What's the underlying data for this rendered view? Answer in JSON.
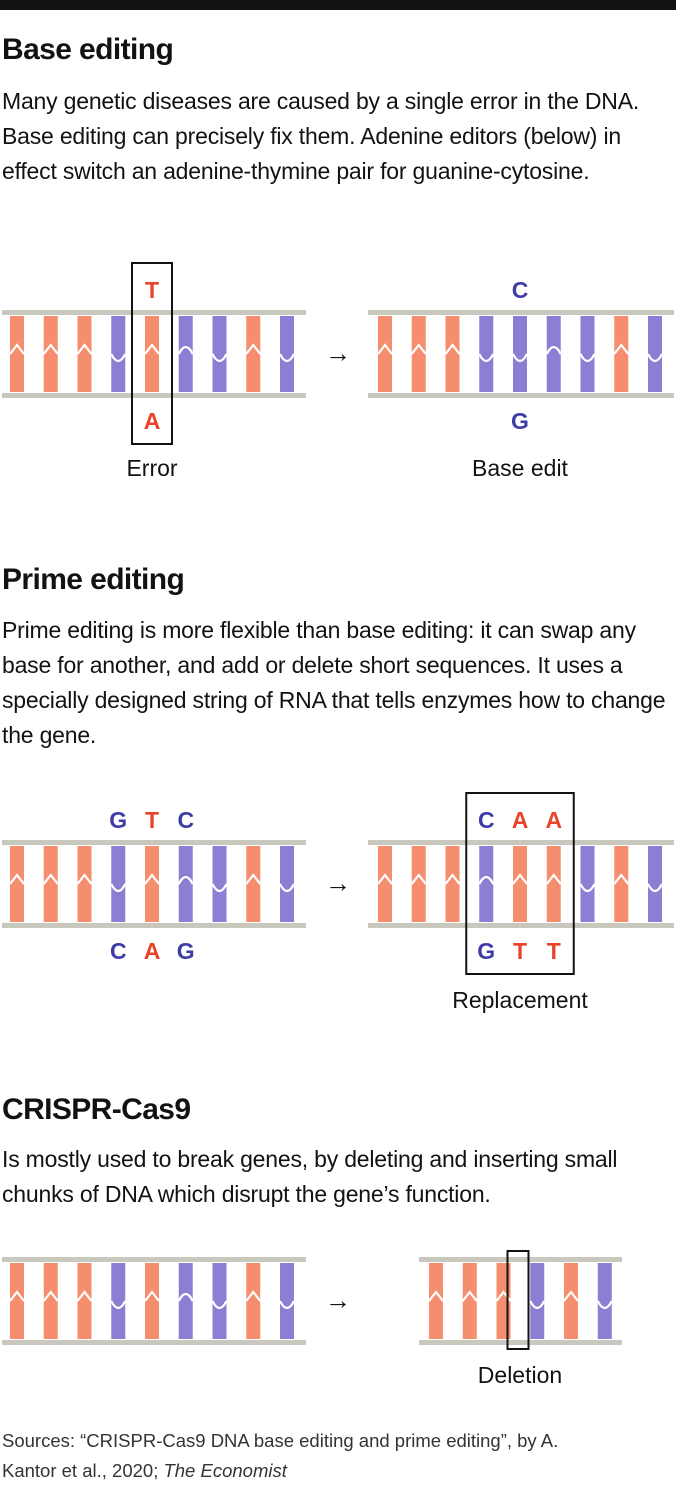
{
  "colors": {
    "adenine_thymine": "#f58e6e",
    "cytosine_guanine": "#8b7fd3",
    "letter_red": "#e8432b",
    "letter_blue": "#3d3ca8",
    "backbone": "#c9c8bf",
    "box": "#121212"
  },
  "sections": [
    {
      "title": "Base editing",
      "description": "Many genetic diseases are caused by a single error in the DNA. Base editing can precisely fix them. Adenine editors (below) in effect switch an adenine-thymine pair for guanine-cytosine.",
      "arrow": "→",
      "left_strand": {
        "pairs": [
          "AT",
          "AT",
          "AT",
          "CG",
          "AT",
          "GC",
          "CG",
          "AT",
          "CG"
        ],
        "letters_top": [
          "T"
        ],
        "letters_bottom": [
          "A"
        ],
        "label": "Error"
      },
      "right_strand": {
        "pairs": [
          "AT",
          "AT",
          "AT",
          "CG",
          "CG",
          "GC",
          "CG",
          "AT",
          "CG"
        ],
        "letters_top": [
          "C"
        ],
        "letters_bottom": [
          "G"
        ],
        "label": "Base edit"
      }
    },
    {
      "title": "Prime editing",
      "description": "Prime editing is more flexible than base editing: it can swap any base for another, and add or delete short sequences. It uses a specially designed string of RNA that tells enzymes how to change the gene.",
      "arrow": "→",
      "left_strand": {
        "pairs": [
          "AT",
          "AT",
          "AT",
          "CG",
          "AT",
          "GC",
          "CG",
          "AT",
          "CG"
        ],
        "letters_top": [
          "G",
          "T",
          "C"
        ],
        "letters_bottom": [
          "C",
          "A",
          "G"
        ],
        "label": ""
      },
      "right_strand": {
        "pairs": [
          "AT",
          "AT",
          "AT",
          "GC",
          "AT",
          "AT",
          "CG",
          "AT",
          "CG"
        ],
        "letters_top": [
          "C",
          "A",
          "A"
        ],
        "letters_bottom": [
          "G",
          "T",
          "T"
        ],
        "label": "Replacement"
      }
    },
    {
      "title": "CRISPR-Cas9",
      "description": "Is mostly used to break genes, by deleting and inserting small chunks of DNA which disrupt the gene’s function.",
      "arrow": "→",
      "left_strand": {
        "pairs": [
          "AT",
          "AT",
          "AT",
          "CG",
          "AT",
          "GC",
          "CG",
          "AT",
          "CG"
        ],
        "label": ""
      },
      "right_strand": {
        "pairs": [
          "AT",
          "AT",
          "AT",
          "CG",
          "AT",
          "CG"
        ],
        "label": "Deletion"
      }
    }
  ],
  "source": {
    "text": "Sources: “CRISPR-Cas9 DNA base editing and prime editing”, by A. Kantor et al., 2020; ",
    "publication": "The Economist"
  }
}
